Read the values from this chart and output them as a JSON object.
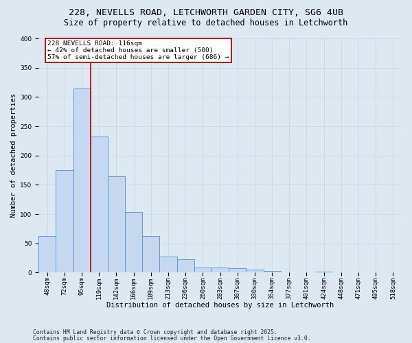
{
  "title1": "228, NEVELLS ROAD, LETCHWORTH GARDEN CITY, SG6 4UB",
  "title2": "Size of property relative to detached houses in Letchworth",
  "xlabel": "Distribution of detached houses by size in Letchworth",
  "ylabel": "Number of detached properties",
  "categories": [
    "48sqm",
    "72sqm",
    "95sqm",
    "119sqm",
    "142sqm",
    "166sqm",
    "189sqm",
    "213sqm",
    "236sqm",
    "260sqm",
    "283sqm",
    "307sqm",
    "330sqm",
    "354sqm",
    "377sqm",
    "401sqm",
    "424sqm",
    "448sqm",
    "471sqm",
    "495sqm",
    "518sqm"
  ],
  "values": [
    62,
    175,
    315,
    232,
    164,
    103,
    62,
    27,
    23,
    9,
    9,
    7,
    5,
    3,
    0,
    0,
    1,
    0,
    0,
    0,
    0
  ],
  "bar_color": "#c5d8f0",
  "bar_edge_color": "#5b9bd5",
  "highlight_line_color": "#c00000",
  "box_text_line1": "228 NEVELLS ROAD: 116sqm",
  "box_text_line2": "← 42% of detached houses are smaller (500)",
  "box_text_line3": "57% of semi-detached houses are larger (686) →",
  "box_color": "#c00000",
  "box_fill": "#ffffff",
  "ylim": [
    0,
    400
  ],
  "yticks": [
    0,
    50,
    100,
    150,
    200,
    250,
    300,
    350,
    400
  ],
  "grid_color": "#c8d8ea",
  "bg_color": "#dde8f0",
  "footnote1": "Contains HM Land Registry data © Crown copyright and database right 2025.",
  "footnote2": "Contains public sector information licensed under the Open Government Licence v3.0.",
  "title1_fontsize": 9.5,
  "title2_fontsize": 8.5,
  "xlabel_fontsize": 7.5,
  "ylabel_fontsize": 7.5,
  "tick_fontsize": 6.5,
  "annotation_fontsize": 6.8,
  "footnote_fontsize": 5.8
}
